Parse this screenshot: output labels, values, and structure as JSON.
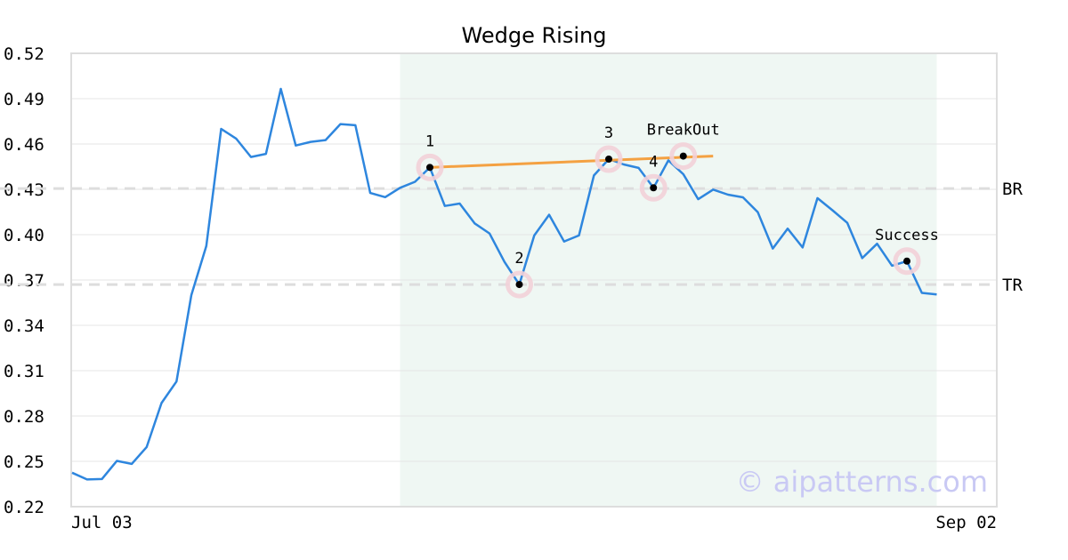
{
  "chart_data": {
    "type": "line",
    "title": "Wedge Rising",
    "xlabel": "",
    "ylabel": "",
    "x_tick_labels": [
      "Jul 03",
      "Sep 02"
    ],
    "ylim": [
      0.22,
      0.52
    ],
    "y_ticks": [
      "0.52",
      "0.49",
      "0.46",
      "0.43",
      "0.40",
      "0.37",
      "0.34",
      "0.31",
      "0.28",
      "0.25",
      "0.22"
    ],
    "grid": true,
    "series": [
      {
        "color": "#2e86de",
        "values": [
          0.2425,
          0.238,
          0.2383,
          0.2503,
          0.2483,
          0.2595,
          0.2886,
          0.3028,
          0.36,
          0.3925,
          0.47,
          0.4636,
          0.4514,
          0.4535,
          0.4965,
          0.459,
          0.4614,
          0.4626,
          0.4732,
          0.4724,
          0.4276,
          0.4248,
          0.431,
          0.435,
          0.4445,
          0.419,
          0.4206,
          0.4075,
          0.4008,
          0.382,
          0.367,
          0.3995,
          0.4132,
          0.3955,
          0.3995,
          0.4392,
          0.45,
          0.4465,
          0.4442,
          0.431,
          0.4492,
          0.44,
          0.4235,
          0.4298,
          0.4265,
          0.4247,
          0.4148,
          0.3908,
          0.404,
          0.3915,
          0.4242,
          0.4162,
          0.4078,
          0.3845,
          0.394,
          0.3795,
          0.3825,
          0.3615,
          0.3605
        ]
      }
    ],
    "horizontal_lines": [
      {
        "label": "BR",
        "value": 0.4305,
        "color": "#dddddd"
      },
      {
        "label": "TR",
        "value": 0.367,
        "color": "#dddddd"
      }
    ],
    "pattern_region": {
      "start_index": 22,
      "end_index": 58,
      "color": "#eff7f3"
    },
    "trendline": {
      "color": "#f4a142",
      "start": {
        "index": 24,
        "value": 0.4445
      },
      "end": {
        "index": 43,
        "value": 0.452
      }
    },
    "markers": [
      {
        "label": "1",
        "index": 24,
        "value": 0.4445,
        "label_pos": "above"
      },
      {
        "label": "2",
        "index": 30,
        "value": 0.367,
        "label_pos": "above"
      },
      {
        "label": "3",
        "index": 36,
        "value": 0.45,
        "label_pos": "above"
      },
      {
        "label": "4",
        "index": 39,
        "value": 0.431,
        "label_pos": "above"
      },
      {
        "label": "BreakOut",
        "index": 41,
        "value": 0.452,
        "label_pos": "above"
      },
      {
        "label": "Success",
        "index": 56,
        "value": 0.3825,
        "label_pos": "above"
      }
    ],
    "watermark": "© aipatterns.com"
  }
}
